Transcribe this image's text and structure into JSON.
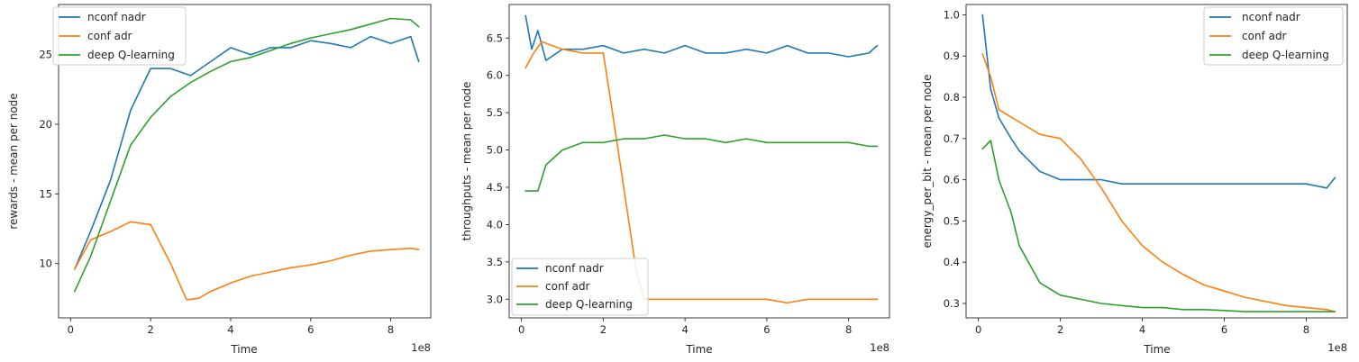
{
  "chart_data": [
    {
      "type": "line",
      "xlabel": "Time",
      "ylabel": "rewards - mean per node",
      "x_offset_text": "1e8",
      "xlim": [
        -0.3,
        9.0
      ],
      "ylim": [
        6.1,
        28.6
      ],
      "xticks": [
        0,
        2,
        4,
        6,
        8
      ],
      "yticks": [
        10,
        15,
        20,
        25
      ],
      "legend_loc": "upper left",
      "series": [
        {
          "name": "nconf nadr",
          "color": "#1f77b4",
          "x": [
            0.1,
            0.5,
            1.0,
            1.5,
            2.0,
            2.5,
            3.0,
            3.5,
            4.0,
            4.5,
            5.0,
            5.5,
            6.0,
            6.5,
            7.0,
            7.5,
            8.0,
            8.5,
            8.7
          ],
          "y": [
            9.6,
            12.3,
            16.0,
            21.0,
            24.0,
            24.0,
            23.5,
            24.5,
            25.5,
            25.0,
            25.5,
            25.5,
            26.0,
            25.8,
            25.5,
            26.3,
            25.8,
            26.3,
            24.5
          ]
        },
        {
          "name": "conf adr",
          "color": "#ff7f0e",
          "x": [
            0.1,
            0.5,
            1.0,
            1.5,
            2.0,
            2.5,
            2.9,
            3.2,
            3.5,
            4.0,
            4.5,
            5.0,
            5.5,
            6.0,
            6.5,
            7.0,
            7.5,
            8.0,
            8.5,
            8.7
          ],
          "y": [
            9.6,
            11.7,
            12.3,
            13.0,
            12.8,
            10.0,
            7.4,
            7.5,
            8.0,
            8.6,
            9.1,
            9.4,
            9.7,
            9.9,
            10.2,
            10.6,
            10.9,
            11.0,
            11.1,
            11.0
          ]
        },
        {
          "name": "deep Q-learning",
          "color": "#2ca02c",
          "x": [
            0.1,
            0.5,
            1.0,
            1.5,
            2.0,
            2.5,
            3.0,
            3.5,
            4.0,
            4.5,
            5.0,
            5.5,
            6.0,
            6.5,
            7.0,
            7.5,
            8.0,
            8.5,
            8.7
          ],
          "y": [
            8.0,
            10.5,
            14.5,
            18.5,
            20.5,
            22.0,
            23.0,
            23.8,
            24.5,
            24.8,
            25.3,
            25.8,
            26.2,
            26.5,
            26.8,
            27.2,
            27.6,
            27.5,
            27.0
          ]
        }
      ]
    },
    {
      "type": "line",
      "xlabel": "Time",
      "ylabel": "throughputs - mean per node",
      "x_offset_text": "1e8",
      "xlim": [
        -0.3,
        9.0
      ],
      "ylim": [
        2.75,
        6.95
      ],
      "xticks": [
        0,
        2,
        4,
        6,
        8
      ],
      "yticks": [
        3.0,
        3.5,
        4.0,
        4.5,
        5.0,
        5.5,
        6.0,
        6.5
      ],
      "legend_loc": "lower left",
      "series": [
        {
          "name": "nconf nadr",
          "color": "#1f77b4",
          "x": [
            0.1,
            0.25,
            0.4,
            0.6,
            1.0,
            1.5,
            2.0,
            2.5,
            3.0,
            3.5,
            4.0,
            4.5,
            5.0,
            5.5,
            6.0,
            6.5,
            7.0,
            7.5,
            8.0,
            8.5,
            8.7
          ],
          "y": [
            6.8,
            6.35,
            6.6,
            6.2,
            6.35,
            6.35,
            6.4,
            6.3,
            6.35,
            6.3,
            6.4,
            6.3,
            6.3,
            6.35,
            6.3,
            6.4,
            6.3,
            6.3,
            6.25,
            6.3,
            6.4
          ]
        },
        {
          "name": "conf adr",
          "color": "#ff7f0e",
          "x": [
            0.1,
            0.3,
            0.5,
            1.0,
            1.5,
            2.0,
            2.2,
            2.5,
            2.8,
            3.0,
            3.5,
            4.0,
            4.5,
            5.0,
            5.5,
            6.0,
            6.5,
            7.0,
            7.5,
            8.0,
            8.5,
            8.7
          ],
          "y": [
            6.1,
            6.3,
            6.45,
            6.35,
            6.3,
            6.3,
            5.6,
            4.5,
            3.4,
            3.0,
            3.0,
            3.0,
            3.0,
            3.0,
            3.0,
            3.0,
            2.95,
            3.0,
            3.0,
            3.0,
            3.0,
            3.0
          ]
        },
        {
          "name": "deep Q-learning",
          "color": "#2ca02c",
          "x": [
            0.1,
            0.4,
            0.6,
            1.0,
            1.5,
            2.0,
            2.5,
            3.0,
            3.5,
            4.0,
            4.5,
            5.0,
            5.5,
            6.0,
            6.5,
            7.0,
            7.5,
            8.0,
            8.5,
            8.7
          ],
          "y": [
            4.45,
            4.45,
            4.8,
            5.0,
            5.1,
            5.1,
            5.15,
            5.15,
            5.2,
            5.15,
            5.15,
            5.1,
            5.15,
            5.1,
            5.1,
            5.1,
            5.1,
            5.1,
            5.05,
            5.05
          ]
        }
      ]
    },
    {
      "type": "line",
      "xlabel": "Time",
      "ylabel": "energy_per_bit - mean per node",
      "x_offset_text": "1e8",
      "xlim": [
        -0.3,
        9.0
      ],
      "ylim": [
        0.265,
        1.025
      ],
      "xticks": [
        0,
        2,
        4,
        6,
        8
      ],
      "yticks": [
        0.3,
        0.4,
        0.5,
        0.6,
        0.7,
        0.8,
        0.9,
        1.0
      ],
      "legend_loc": "upper right",
      "series": [
        {
          "name": "nconf nadr",
          "color": "#1f77b4",
          "x": [
            0.1,
            0.3,
            0.5,
            0.8,
            1.0,
            1.5,
            2.0,
            2.5,
            3.0,
            3.5,
            4.0,
            4.5,
            5.0,
            5.5,
            6.0,
            6.5,
            7.0,
            7.5,
            8.0,
            8.5,
            8.7
          ],
          "y": [
            1.0,
            0.82,
            0.75,
            0.7,
            0.67,
            0.62,
            0.6,
            0.6,
            0.6,
            0.59,
            0.59,
            0.59,
            0.59,
            0.59,
            0.59,
            0.59,
            0.59,
            0.59,
            0.59,
            0.58,
            0.605
          ]
        },
        {
          "name": "conf adr",
          "color": "#ff7f0e",
          "x": [
            0.1,
            0.3,
            0.5,
            1.0,
            1.5,
            2.0,
            2.5,
            3.0,
            3.5,
            4.0,
            4.5,
            5.0,
            5.5,
            6.0,
            6.5,
            7.0,
            7.5,
            8.0,
            8.5,
            8.7
          ],
          "y": [
            0.905,
            0.85,
            0.77,
            0.74,
            0.71,
            0.7,
            0.65,
            0.58,
            0.5,
            0.44,
            0.4,
            0.37,
            0.345,
            0.33,
            0.315,
            0.305,
            0.295,
            0.29,
            0.285,
            0.28
          ]
        },
        {
          "name": "deep Q-learning",
          "color": "#2ca02c",
          "x": [
            0.1,
            0.3,
            0.5,
            0.8,
            1.0,
            1.5,
            2.0,
            2.5,
            3.0,
            3.5,
            4.0,
            4.5,
            5.0,
            5.5,
            6.0,
            6.5,
            7.0,
            7.5,
            8.0,
            8.5,
            8.7
          ],
          "y": [
            0.675,
            0.695,
            0.6,
            0.52,
            0.44,
            0.35,
            0.32,
            0.31,
            0.3,
            0.295,
            0.29,
            0.29,
            0.285,
            0.285,
            0.283,
            0.28,
            0.28,
            0.28,
            0.28,
            0.28,
            0.28
          ]
        }
      ]
    }
  ]
}
